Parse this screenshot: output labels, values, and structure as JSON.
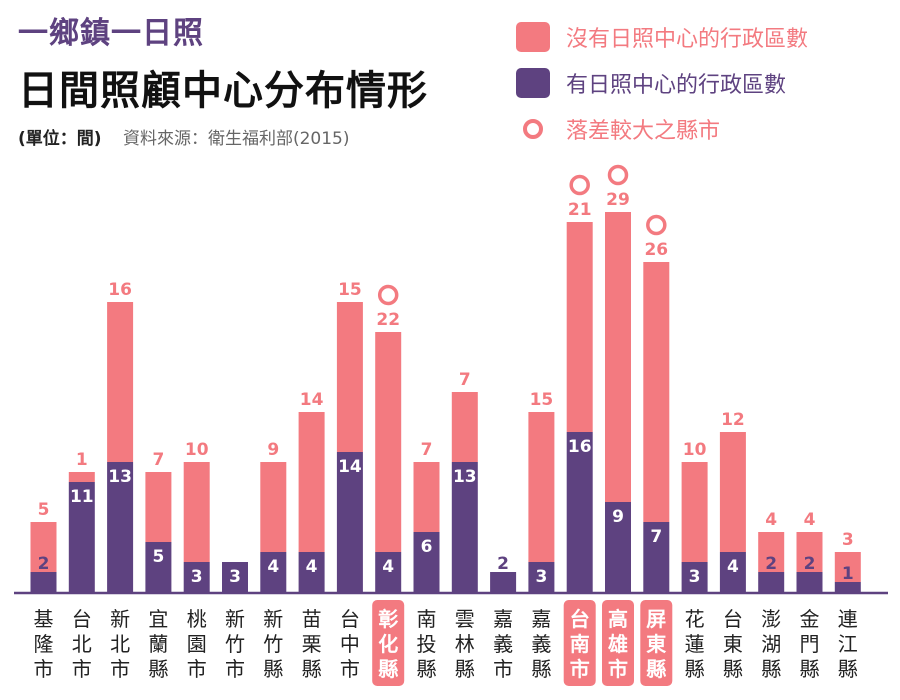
{
  "header": {
    "subtitle": "一鄉鎮一日照",
    "title": "日間照顧中心分布情形",
    "unit": "(單位：間)",
    "source": "資料來源：衛生福利部(2015)"
  },
  "legend": {
    "without": "沒有日照中心的行政區數",
    "with": "有日照中心的行政區數",
    "gap": "落差較大之縣市"
  },
  "colors": {
    "without": "#f37a80",
    "with": "#5e4280",
    "axis": "#5e4280",
    "highlight_bg": "#f37a80",
    "label_text": "#222222"
  },
  "chart_data": {
    "type": "bar",
    "stacked": true,
    "categories": [
      "基隆市",
      "台北市",
      "新北市",
      "宜蘭縣",
      "桃園市",
      "新竹市",
      "新竹縣",
      "苗栗縣",
      "台中市",
      "彰化縣",
      "南投縣",
      "雲林縣",
      "嘉義市",
      "嘉義縣",
      "台南市",
      "高雄市",
      "屏東縣",
      "花蓮縣",
      "台東縣",
      "澎湖縣",
      "金門縣",
      "連江縣"
    ],
    "series": [
      {
        "name": "有日照中心的行政區數",
        "values": [
          2,
          11,
          13,
          5,
          3,
          3,
          4,
          4,
          14,
          4,
          6,
          13,
          2,
          3,
          16,
          9,
          7,
          3,
          4,
          2,
          2,
          1
        ]
      },
      {
        "name": "沒有日照中心的行政區數",
        "values": [
          5,
          1,
          16,
          7,
          10,
          0,
          9,
          14,
          15,
          22,
          7,
          7,
          0,
          15,
          21,
          29,
          26,
          10,
          12,
          4,
          4,
          3
        ]
      }
    ],
    "highlighted": [
      "彰化縣",
      "台南市",
      "高雄市",
      "屏東縣"
    ],
    "ylim": [
      0,
      38
    ],
    "legend_position": "top-right"
  }
}
